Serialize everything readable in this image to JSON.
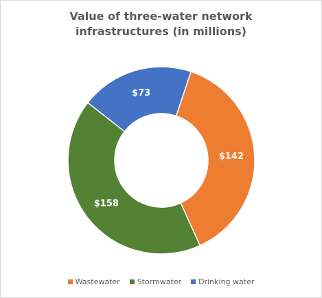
{
  "chart_data": {
    "type": "donut",
    "title": "Value of three-water network infrastructures (in millions)",
    "categories": [
      "Wastewater",
      "Stormwater",
      "Drinking water"
    ],
    "values": [
      142,
      158,
      73
    ],
    "value_labels": [
      "$142",
      "$158",
      "$73"
    ],
    "colors": [
      "#ed7d31",
      "#548235",
      "#4472c4"
    ],
    "legend": "bottom"
  }
}
